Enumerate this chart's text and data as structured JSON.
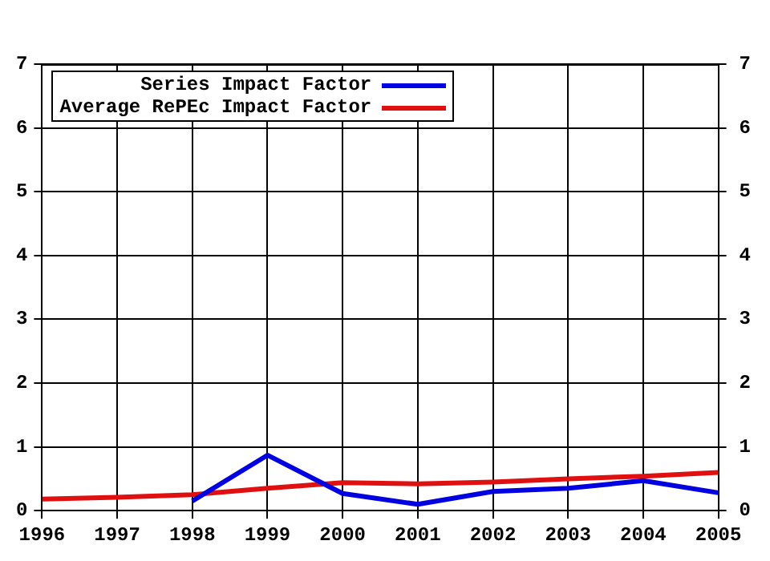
{
  "chart_data": {
    "type": "line",
    "x": [
      1996,
      1997,
      1998,
      1999,
      2000,
      2001,
      2002,
      2003,
      2004,
      2005
    ],
    "series": [
      {
        "name": "Series Impact Factor",
        "color": "#0000e0",
        "values": [
          null,
          null,
          0.15,
          0.87,
          0.27,
          0.1,
          0.3,
          0.35,
          0.47,
          0.28
        ]
      },
      {
        "name": "Average RePEc Impact Factor",
        "color": "#e01010",
        "values": [
          0.18,
          0.21,
          0.25,
          0.35,
          0.44,
          0.42,
          0.45,
          0.5,
          0.54,
          0.6
        ]
      }
    ],
    "xlim": [
      1996,
      2005
    ],
    "xticks": [
      1996,
      1997,
      1998,
      1999,
      2000,
      2001,
      2002,
      2003,
      2004,
      2005
    ],
    "ylim": [
      0,
      7
    ],
    "yticks": [
      0,
      1,
      2,
      3,
      4,
      5,
      6,
      7
    ],
    "y2lim": [
      0,
      7
    ],
    "y2ticks": [
      0,
      1,
      2,
      3,
      4,
      5,
      6,
      7
    ],
    "grid": true,
    "legend": "top left",
    "marker": "none",
    "line_style": "solid"
  }
}
